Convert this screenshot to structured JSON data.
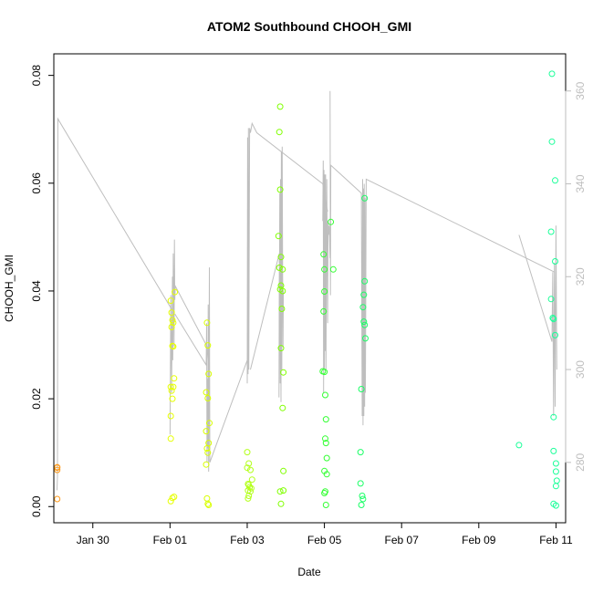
{
  "chart_data": {
    "type": "scatter",
    "title": "ATOM2 Southbound CHOOH_GMI",
    "xlabel": "Date",
    "ylabel": "CHOOH_GMI",
    "x_ticks": [
      "Jan 30",
      "Feb 01",
      "Feb 03",
      "Feb 05",
      "Feb 07",
      "Feb 09",
      "Feb 11"
    ],
    "y_ticks": [
      "0.00",
      "0.02",
      "0.04",
      "0.06",
      "0.08"
    ],
    "y2_ticks": [
      "280",
      "300",
      "320",
      "340",
      "360"
    ],
    "xlim": [
      "2016-01-28T23:45",
      "2016-02-11T06:00"
    ],
    "ylim": [
      -0.003,
      0.084
    ],
    "y2lim": [
      267,
      368
    ],
    "secondary_series_color": "#bebebe",
    "scatter_series": {
      "name": "CHOOH_GMI",
      "points": [
        [
          "2016-01-29T01:50",
          0.0072,
          "#ff9a1a"
        ],
        [
          "2016-01-29T01:50",
          0.0068,
          "#ff9a1a"
        ],
        [
          "2016-01-29T01:50",
          0.0073,
          "#ff9a1a"
        ],
        [
          "2016-01-29T01:50",
          0.0014,
          "#ff9a1a"
        ],
        [
          "2016-02-01T00:30",
          0.0382,
          "#e6ff00"
        ],
        [
          "2016-02-01T01:00",
          0.036,
          "#e6ff00"
        ],
        [
          "2016-02-01T01:30",
          0.0346,
          "#e6ff00"
        ],
        [
          "2016-02-01T02:00",
          0.0341,
          "#e6ff00"
        ],
        [
          "2016-02-01T01:00",
          0.0333,
          "#e6ff00"
        ],
        [
          "2016-02-01T01:30",
          0.0298,
          "#e6ff00"
        ],
        [
          "2016-02-01T02:00",
          0.0297,
          "#e6ff00"
        ],
        [
          "2016-02-01T02:30",
          0.0238,
          "#e6ff00"
        ],
        [
          "2016-02-01T00:30",
          0.0222,
          "#e6ff00"
        ],
        [
          "2016-02-01T02:00",
          0.0222,
          "#e6ff00"
        ],
        [
          "2016-02-01T01:00",
          0.0215,
          "#e6ff00"
        ],
        [
          "2016-02-01T01:30",
          0.02,
          "#e6ff00"
        ],
        [
          "2016-02-01T00:30",
          0.0168,
          "#e6ff00"
        ],
        [
          "2016-02-01T00:30",
          0.0126,
          "#e6ff00"
        ],
        [
          "2016-02-01T03:00",
          0.0398,
          "#e6ff00"
        ],
        [
          "2016-02-01T01:30",
          0.0016,
          "#e6ff00"
        ],
        [
          "2016-02-01T00:30",
          0.001,
          "#e6ff00"
        ],
        [
          "2016-02-01T02:30",
          0.0018,
          "#e6ff00"
        ],
        [
          "2016-02-01T23:00",
          0.0341,
          "#d9ff00"
        ],
        [
          "2016-02-01T23:30",
          0.0299,
          "#d9ff00"
        ],
        [
          "2016-02-02T00:00",
          0.0246,
          "#d9ff00"
        ],
        [
          "2016-02-01T22:30",
          0.0212,
          "#d9ff00"
        ],
        [
          "2016-02-01T23:30",
          0.0201,
          "#d9ff00"
        ],
        [
          "2016-02-02T00:30",
          0.0155,
          "#d9ff00"
        ],
        [
          "2016-02-01T22:30",
          0.014,
          "#d9ff00"
        ],
        [
          "2016-02-02T00:00",
          0.0118,
          "#d9ff00"
        ],
        [
          "2016-02-01T23:00",
          0.0108,
          "#d9ff00"
        ],
        [
          "2016-02-01T23:30",
          0.01,
          "#d9ff00"
        ],
        [
          "2016-02-01T22:30",
          0.0078,
          "#d9ff00"
        ],
        [
          "2016-02-01T23:00",
          0.0015,
          "#d9ff00"
        ],
        [
          "2016-02-01T23:30",
          0.0005,
          "#d9ff00"
        ],
        [
          "2016-02-02T00:00",
          0.0003,
          "#d9ff00"
        ],
        [
          "2016-02-03T00:00",
          0.0101,
          "#b3ff1a"
        ],
        [
          "2016-02-03T01:00",
          0.008,
          "#b3ff1a"
        ],
        [
          "2016-02-03T00:00",
          0.0072,
          "#b3ff1a"
        ],
        [
          "2016-02-03T02:00",
          0.0068,
          "#b3ff1a"
        ],
        [
          "2016-02-03T03:00",
          0.005,
          "#b3ff1a"
        ],
        [
          "2016-02-03T00:30",
          0.0042,
          "#b3ff1a"
        ],
        [
          "2016-02-03T01:00",
          0.004,
          "#b3ff1a"
        ],
        [
          "2016-02-03T01:30",
          0.0036,
          "#b3ff1a"
        ],
        [
          "2016-02-03T02:30",
          0.0034,
          "#b3ff1a"
        ],
        [
          "2016-02-03T00:30",
          0.003,
          "#b3ff1a"
        ],
        [
          "2016-02-03T02:00",
          0.0028,
          "#b3ff1a"
        ],
        [
          "2016-02-03T01:00",
          0.002,
          "#b3ff1a"
        ],
        [
          "2016-02-03T00:30",
          0.0015,
          "#b3ff1a"
        ],
        [
          "2016-02-03T20:30",
          0.0742,
          "#80ff00"
        ],
        [
          "2016-02-03T20:00",
          0.0695,
          "#80ff00"
        ],
        [
          "2016-02-03T20:30",
          0.0588,
          "#80ff00"
        ],
        [
          "2016-02-03T19:30",
          0.0502,
          "#80ff00"
        ],
        [
          "2016-02-03T21:00",
          0.0463,
          "#80ff00"
        ],
        [
          "2016-02-03T20:00",
          0.0443,
          "#80ff00"
        ],
        [
          "2016-02-03T22:00",
          0.044,
          "#80ff00"
        ],
        [
          "2016-02-03T21:00",
          0.041,
          "#80ff00"
        ],
        [
          "2016-02-03T20:30",
          0.0403,
          "#80ff00"
        ],
        [
          "2016-02-03T22:00",
          0.04,
          "#80ff00"
        ],
        [
          "2016-02-03T21:30",
          0.0367,
          "#80ff00"
        ],
        [
          "2016-02-03T21:00",
          0.0294,
          "#80ff00"
        ],
        [
          "2016-02-03T22:30",
          0.0249,
          "#80ff00"
        ],
        [
          "2016-02-03T22:00",
          0.0183,
          "#80ff00"
        ],
        [
          "2016-02-03T22:30",
          0.0066,
          "#80ff00"
        ],
        [
          "2016-02-03T22:30",
          0.003,
          "#80ff00"
        ],
        [
          "2016-02-03T20:30",
          0.0028,
          "#80ff00"
        ],
        [
          "2016-02-03T21:00",
          0.0005,
          "#80ff00"
        ],
        [
          "2016-02-04T23:30",
          0.0468,
          "#33ff33"
        ],
        [
          "2016-02-05T00:00",
          0.044,
          "#33ff33"
        ],
        [
          "2016-02-05T00:00",
          0.0399,
          "#33ff33"
        ],
        [
          "2016-02-04T23:30",
          0.0362,
          "#33ff33"
        ],
        [
          "2016-02-04T23:00",
          0.0251,
          "#33ff33"
        ],
        [
          "2016-02-05T00:00",
          0.025,
          "#33ff33"
        ],
        [
          "2016-02-05T00:30",
          0.0207,
          "#33ff33"
        ],
        [
          "2016-02-05T01:00",
          0.0162,
          "#33ff33"
        ],
        [
          "2016-02-05T00:30",
          0.0126,
          "#33ff33"
        ],
        [
          "2016-02-05T01:00",
          0.0118,
          "#33ff33"
        ],
        [
          "2016-02-05T01:30",
          0.009,
          "#33ff33"
        ],
        [
          "2016-02-05T00:00",
          0.0066,
          "#33ff33"
        ],
        [
          "2016-02-05T01:30",
          0.006,
          "#33ff33"
        ],
        [
          "2016-02-05T00:30",
          0.0028,
          "#33ff33"
        ],
        [
          "2016-02-05T00:00",
          0.0025,
          "#33ff33"
        ],
        [
          "2016-02-05T01:00",
          0.0003,
          "#33ff33"
        ],
        [
          "2016-02-05T04:00",
          0.0528,
          "#33ff33"
        ],
        [
          "2016-02-05T05:30",
          0.044,
          "#33ff33"
        ],
        [
          "2016-02-06T01:00",
          0.0572,
          "#1aff66"
        ],
        [
          "2016-02-06T01:00",
          0.0418,
          "#1aff66"
        ],
        [
          "2016-02-06T00:30",
          0.0393,
          "#1aff66"
        ],
        [
          "2016-02-06T00:00",
          0.037,
          "#1aff66"
        ],
        [
          "2016-02-06T00:30",
          0.0343,
          "#1aff66"
        ],
        [
          "2016-02-06T01:00",
          0.0337,
          "#1aff66"
        ],
        [
          "2016-02-06T01:30",
          0.0312,
          "#1aff66"
        ],
        [
          "2016-02-05T23:00",
          0.0218,
          "#1aff66"
        ],
        [
          "2016-02-05T22:30",
          0.0101,
          "#1aff66"
        ],
        [
          "2016-02-05T22:30",
          0.0043,
          "#1aff66"
        ],
        [
          "2016-02-05T23:30",
          0.002,
          "#1aff66"
        ],
        [
          "2016-02-06T00:00",
          0.0014,
          "#1aff66"
        ],
        [
          "2016-02-05T23:00",
          0.0003,
          "#1aff66"
        ],
        [
          "2016-02-10T01:00",
          0.0114,
          "#1aff99"
        ],
        [
          "2016-02-10T21:30",
          0.0803,
          "#1aff99"
        ],
        [
          "2016-02-10T21:30",
          0.0677,
          "#1aff99"
        ],
        [
          "2016-02-10T23:30",
          0.0605,
          "#1aff99"
        ],
        [
          "2016-02-10T21:00",
          0.051,
          "#1aff99"
        ],
        [
          "2016-02-10T23:30",
          0.0455,
          "#1aff99"
        ],
        [
          "2016-02-10T21:00",
          0.0385,
          "#1aff99"
        ],
        [
          "2016-02-10T22:00",
          0.035,
          "#1aff99"
        ],
        [
          "2016-02-10T22:30",
          0.0348,
          "#1aff99"
        ],
        [
          "2016-02-10T23:30",
          0.0318,
          "#1aff99"
        ],
        [
          "2016-02-10T22:30",
          0.0166,
          "#1aff99"
        ],
        [
          "2016-02-10T22:30",
          0.0103,
          "#1aff99"
        ],
        [
          "2016-02-11T00:00",
          0.008,
          "#1aff99"
        ],
        [
          "2016-02-11T00:00",
          0.0065,
          "#1aff99"
        ],
        [
          "2016-02-11T00:30",
          0.0048,
          "#1aff99"
        ],
        [
          "2016-02-11T00:00",
          0.0038,
          "#1aff99"
        ],
        [
          "2016-02-10T22:30",
          0.0005,
          "#1aff99"
        ],
        [
          "2016-02-11T00:00",
          0.0002,
          "#1aff99"
        ]
      ]
    },
    "line_series": {
      "axis": "right",
      "segments": [
        [
          [
            "2016-01-29T01:45",
            274
          ],
          [
            "2016-01-29T02:00",
            277
          ],
          [
            "2016-01-29T02:15",
            354
          ],
          [
            "2016-02-01T01:00",
            313
          ]
        ],
        [
          [
            "2016-02-01T00:00",
            286
          ],
          [
            "2016-02-01T00:30",
            316
          ],
          [
            "2016-02-01T01:00",
            295
          ],
          [
            "2016-02-01T01:30",
            320
          ],
          [
            "2016-02-01T01:45",
            302
          ],
          [
            "2016-02-01T02:00",
            325
          ],
          [
            "2016-02-01T02:30",
            305
          ],
          [
            "2016-02-01T02:45",
            328
          ],
          [
            "2016-02-01T03:00",
            315
          ],
          [
            "2016-02-01T03:15",
            318
          ],
          [
            "2016-02-01T23:00",
            305
          ],
          [
            "2016-02-02T00:00",
            300
          ]
        ],
        [
          [
            "2016-02-01T03:00",
            312
          ],
          [
            "2016-02-01T22:30",
            301
          ],
          [
            "2016-02-01T22:45",
            310
          ],
          [
            "2016-02-01T23:00",
            280
          ],
          [
            "2016-02-01T23:15",
            298
          ],
          [
            "2016-02-01T23:30",
            283
          ],
          [
            "2016-02-01T23:45",
            314
          ],
          [
            "2016-02-02T00:00",
            278
          ],
          [
            "2016-02-02T00:15",
            300
          ],
          [
            "2016-02-02T00:30",
            322
          ],
          [
            "2016-02-02T00:45",
            280
          ],
          [
            "2016-02-03T00:00",
            302
          ]
        ],
        [
          [
            "2016-02-03T00:00",
            297
          ],
          [
            "2016-02-03T00:15",
            350
          ],
          [
            "2016-02-03T00:30",
            299
          ],
          [
            "2016-02-03T00:45",
            352
          ],
          [
            "2016-02-03T01:00",
            300
          ],
          [
            "2016-02-03T01:30",
            352
          ],
          [
            "2016-02-03T02:00",
            351
          ],
          [
            "2016-02-03T03:00",
            353
          ],
          [
            "2016-02-03T06:00",
            351
          ],
          [
            "2016-02-04T23:00",
            340
          ],
          [
            "2016-02-05T02:00",
            334
          ]
        ],
        [
          [
            "2016-02-03T02:00",
            300
          ],
          [
            "2016-02-03T20:00",
            325
          ],
          [
            "2016-02-03T19:45",
            294
          ],
          [
            "2016-02-03T20:15",
            338
          ],
          [
            "2016-02-03T20:30",
            297
          ],
          [
            "2016-02-03T20:45",
            341
          ],
          [
            "2016-02-03T21:00",
            293
          ],
          [
            "2016-02-03T21:15",
            347
          ],
          [
            "2016-02-03T21:30",
            300
          ],
          [
            "2016-02-03T21:45",
            348
          ],
          [
            "2016-02-03T22:00",
            320
          ],
          [
            "2016-02-03T22:15",
            305
          ],
          [
            "2016-02-03T22:30",
            317
          ]
        ],
        [
          [
            "2016-02-04T23:00",
            332
          ],
          [
            "2016-02-04T23:15",
            345
          ],
          [
            "2016-02-04T23:30",
            295
          ],
          [
            "2016-02-04T23:45",
            343
          ],
          [
            "2016-02-05T00:00",
            300
          ],
          [
            "2016-02-05T00:15",
            342
          ],
          [
            "2016-02-05T00:30",
            304
          ],
          [
            "2016-02-05T00:45",
            342
          ],
          [
            "2016-02-05T01:00",
            300
          ],
          [
            "2016-02-05T01:30",
            341
          ],
          [
            "2016-02-05T02:00",
            310
          ],
          [
            "2016-02-05T02:15",
            332
          ],
          [
            "2016-02-05T02:30",
            329
          ],
          [
            "2016-02-05T03:00",
            331
          ],
          [
            "2016-02-05T03:30",
            324
          ]
        ],
        [
          [
            "2016-02-05T03:30",
            360
          ],
          [
            "2016-02-05T03:45",
            316
          ],
          [
            "2016-02-05T04:00",
            344
          ],
          [
            "2016-02-05T23:00",
            338
          ],
          [
            "2016-02-05T23:30",
            290
          ],
          [
            "2016-02-05T23:45",
            341
          ],
          [
            "2016-02-06T00:00",
            288
          ],
          [
            "2016-02-06T00:15",
            339
          ],
          [
            "2016-02-06T00:30",
            290
          ],
          [
            "2016-02-06T00:45",
            340
          ],
          [
            "2016-02-06T01:00",
            292
          ],
          [
            "2016-02-06T01:15",
            337
          ],
          [
            "2016-02-06T01:30",
            295
          ],
          [
            "2016-02-06T02:00",
            341
          ],
          [
            "2016-02-10T23:00",
            321
          ]
        ],
        [
          [
            "2016-02-10T01:00",
            329
          ],
          [
            "2016-02-10T21:30",
            306
          ],
          [
            "2016-02-10T22:00",
            321
          ],
          [
            "2016-02-10T22:30",
            290
          ],
          [
            "2016-02-10T23:00",
            323
          ],
          [
            "2016-02-10T23:30",
            292
          ],
          [
            "2016-02-11T00:00",
            331
          ],
          [
            "2016-02-11T00:30",
            300
          ]
        ]
      ]
    }
  }
}
